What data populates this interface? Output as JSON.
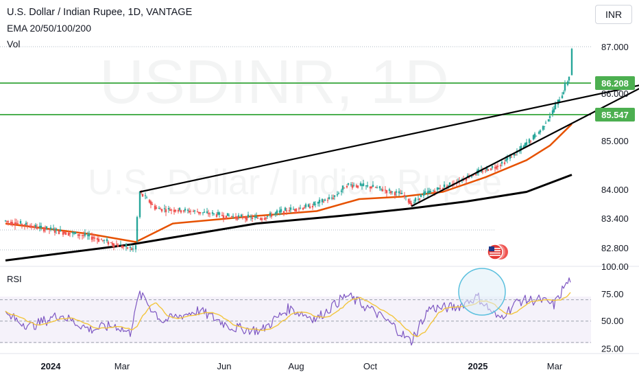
{
  "header": {
    "title": "U.S. Dollar / Indian Rupee, 1D, VANTAGE",
    "indicators": "EMA 20/50/100/200",
    "volume": "Vol"
  },
  "currency_button": "INR",
  "watermark": {
    "symbol": "USDINR, 1D",
    "name": "U.S. Dollar / Indian Rupee"
  },
  "rsi_label": "RSI",
  "colors": {
    "up": "#26a69a",
    "down": "#ef5350",
    "ema50": "#e65100",
    "ema200": "#000000",
    "level": "#4caf50",
    "rsi": "#7e57c2",
    "rsi_ma": "#f2c53d",
    "circle": "#5bc0de"
  },
  "chart_data": [
    {
      "type": "line",
      "title": "U.S. Dollar / Indian Rupee, 1D, VANTAGE",
      "x_ticks": [
        "2024",
        "Mar",
        "Jun",
        "Aug",
        "Oct",
        "2025",
        "Mar"
      ],
      "y_ticks": [
        "87.000",
        "86.000",
        "85.000",
        "84.000",
        "83.400",
        "82.800"
      ],
      "y_range": [
        82.6,
        87.2
      ],
      "price_path": [
        [
          "2023-12-01",
          83.35
        ],
        [
          "2023-12-20",
          83.25
        ],
        [
          "2024-01-10",
          83.15
        ],
        [
          "2024-02-01",
          83.05
        ],
        [
          "2024-02-20",
          82.9
        ],
        [
          "2024-03-05",
          82.8
        ],
        [
          "2024-03-08",
          83.95
        ],
        [
          "2024-03-20",
          83.6
        ],
        [
          "2024-04-15",
          83.55
        ],
        [
          "2024-05-10",
          83.45
        ],
        [
          "2024-06-05",
          83.4
        ],
        [
          "2024-06-20",
          83.55
        ],
        [
          "2024-07-10",
          83.65
        ],
        [
          "2024-07-28",
          83.85
        ],
        [
          "2024-08-06",
          84.1
        ],
        [
          "2024-08-25",
          84.05
        ],
        [
          "2024-09-15",
          83.9
        ],
        [
          "2024-09-22",
          83.7
        ],
        [
          "2024-10-01",
          83.9
        ],
        [
          "2024-10-20",
          84.1
        ],
        [
          "2024-11-10",
          84.35
        ],
        [
          "2024-11-25",
          84.5
        ],
        [
          "2024-12-10",
          84.8
        ],
        [
          "2024-12-25",
          85.2
        ],
        [
          "2025-01-05",
          85.7
        ],
        [
          "2025-01-12",
          86.1
        ],
        [
          "2025-01-16",
          86.4
        ],
        [
          "2025-01-17",
          86.96
        ]
      ],
      "ema50": [
        [
          "2023-12-01",
          83.3
        ],
        [
          "2024-02-01",
          83.1
        ],
        [
          "2024-03-05",
          82.95
        ],
        [
          "2024-04-01",
          83.3
        ],
        [
          "2024-06-01",
          83.45
        ],
        [
          "2024-07-15",
          83.55
        ],
        [
          "2024-08-15",
          83.8
        ],
        [
          "2024-09-15",
          83.85
        ],
        [
          "2024-10-15",
          83.95
        ],
        [
          "2024-11-15",
          84.25
        ],
        [
          "2024-12-15",
          84.6
        ],
        [
          "2025-01-01",
          84.9
        ],
        [
          "2025-01-17",
          85.35
        ]
      ],
      "ema200": [
        [
          "2023-12-01",
          82.6
        ],
        [
          "2024-03-01",
          82.9
        ],
        [
          "2024-06-01",
          83.3
        ],
        [
          "2024-08-01",
          83.45
        ],
        [
          "2024-09-20",
          83.6
        ],
        [
          "2024-11-01",
          83.75
        ],
        [
          "2024-12-15",
          83.95
        ],
        [
          "2025-01-17",
          84.3
        ]
      ],
      "horizontal_levels": [
        86.208,
        85.547
      ],
      "trendlines": [
        {
          "from": [
            "2024-03-08",
            83.95
          ],
          "to": [
            "2025-03-15",
            86.208
          ]
        },
        {
          "from": [
            "2024-09-22",
            83.65
          ],
          "to": [
            "2025-03-15",
            86.208
          ]
        }
      ]
    },
    {
      "type": "line",
      "title": "RSI",
      "y_ticks": [
        "100.00",
        "75.00",
        "50.00",
        "25.00"
      ],
      "y_range": [
        20,
        100
      ],
      "rsi": [
        [
          "2023-12-01",
          56
        ],
        [
          "2023-12-20",
          45
        ],
        [
          "2024-01-10",
          56
        ],
        [
          "2024-02-01",
          42
        ],
        [
          "2024-02-20",
          46
        ],
        [
          "2024-03-01",
          38
        ],
        [
          "2024-03-08",
          76
        ],
        [
          "2024-03-25",
          50
        ],
        [
          "2024-04-20",
          60
        ],
        [
          "2024-05-15",
          44
        ],
        [
          "2024-06-05",
          41
        ],
        [
          "2024-06-25",
          62
        ],
        [
          "2024-07-15",
          52
        ],
        [
          "2024-08-06",
          74
        ],
        [
          "2024-08-25",
          60
        ],
        [
          "2024-09-10",
          45
        ],
        [
          "2024-09-22",
          30
        ],
        [
          "2024-10-05",
          62
        ],
        [
          "2024-10-25",
          63
        ],
        [
          "2024-11-10",
          73
        ],
        [
          "2024-11-25",
          52
        ],
        [
          "2024-12-10",
          69
        ],
        [
          "2024-12-25",
          70
        ],
        [
          "2025-01-05",
          65
        ],
        [
          "2025-01-12",
          82
        ],
        [
          "2025-01-17",
          90
        ]
      ]
    }
  ]
}
